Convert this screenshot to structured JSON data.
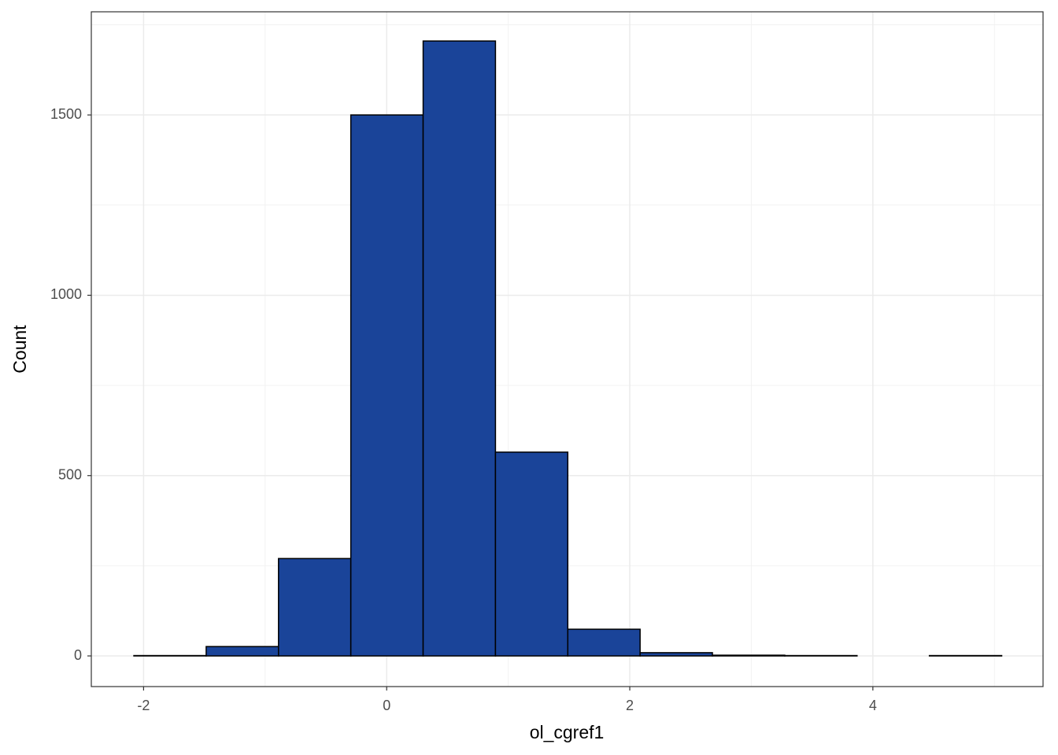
{
  "chart_data": {
    "type": "histogram",
    "x_label": "ol_cgref1",
    "y_label": "Count",
    "bins": [
      -2.08,
      -1.485,
      -0.89,
      -0.295,
      0.3,
      0.895,
      1.49,
      2.085,
      2.68,
      3.275,
      3.87,
      4.465,
      5.06
    ],
    "values": [
      1,
      26,
      270,
      1500,
      1705,
      565,
      74,
      9,
      2,
      1,
      0,
      1
    ],
    "color": "#1a4499",
    "xlim": [
      -2.43,
      5.4
    ],
    "xticks": [
      -2,
      0,
      2,
      4
    ],
    "ylim": [
      -85,
      1786
    ],
    "yticks": [
      0,
      500,
      1000,
      1500
    ],
    "grid": true
  }
}
